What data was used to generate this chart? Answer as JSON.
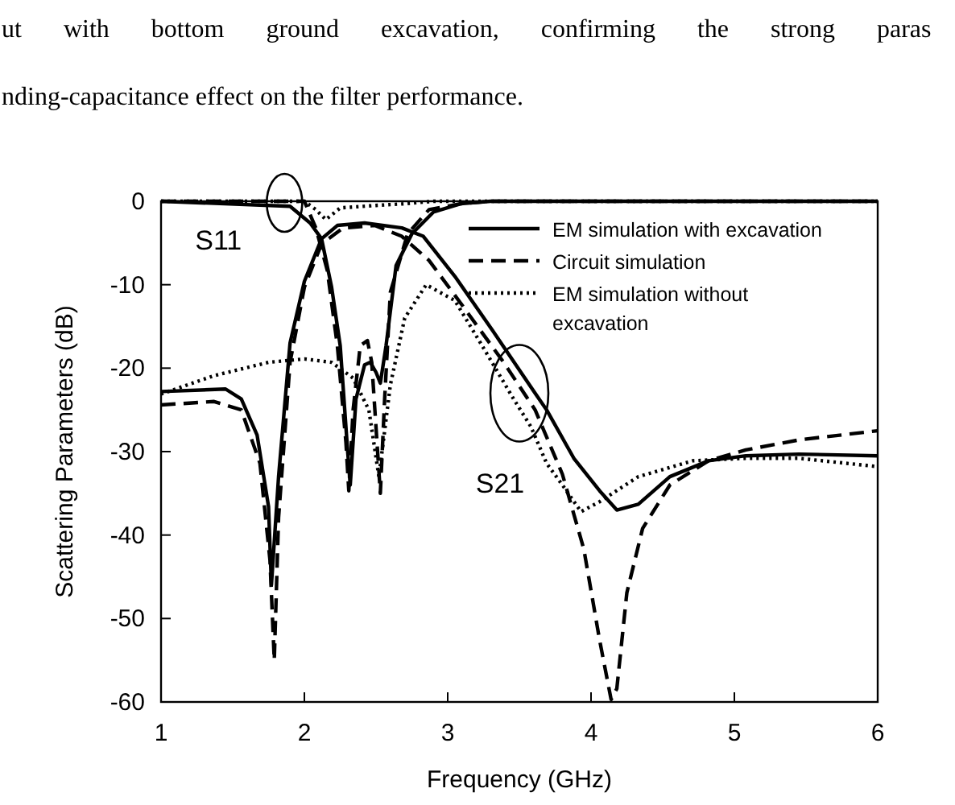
{
  "chart_data": {
    "type": "line",
    "xlabel": "Frequency (GHz)",
    "ylabel": "Scattering Parameters (dB)",
    "xlim": [
      1,
      6
    ],
    "xticks": [
      1,
      2,
      3,
      4,
      5,
      6
    ],
    "ylim": [
      -60,
      0
    ],
    "yticks": [
      0,
      -10,
      -20,
      -30,
      -40,
      -50,
      -60
    ],
    "legend": "top right",
    "annotations": [
      "ut with bottom ground excavation, confirming the strong paras",
      "nding-capacitance effect on the filter performance.",
      {
        "text": "S11",
        "x": 1.85,
        "y": 0
      },
      {
        "text": "S21",
        "x": 3.5,
        "y": -23
      }
    ],
    "series": [
      {
        "name": "EM simulation with excavation",
        "color": "#000000",
        "line_style": "solid",
        "x": [
          1,
          1.45,
          1.56,
          1.67,
          1.75,
          1.77,
          1.82,
          1.9,
          2.0,
          2.12,
          2.23,
          2.42,
          2.68,
          2.83,
          3.05,
          3.31,
          3.61,
          3.69,
          3.88,
          4.06,
          4.18,
          4.33,
          4.55,
          4.82,
          5.08,
          5.45,
          6
        ],
        "values": [
          -22.8,
          -22.5,
          -23.7,
          -28,
          -36.6,
          -46,
          -33,
          -17,
          -9.6,
          -4.5,
          -2.9,
          -2.6,
          -3.2,
          -4.2,
          -9,
          -15.4,
          -23,
          -25,
          -30.8,
          -34.7,
          -37,
          -36.3,
          -33,
          -31.1,
          -30.5,
          -30.3,
          -30.5
        ]
      },
      {
        "color": "#000000",
        "line_style": "solid",
        "x": [
          1,
          1.9,
          2.04,
          2.12,
          2.19,
          2.25,
          2.3,
          2.32,
          2.36,
          2.42,
          2.46,
          2.5,
          2.53,
          2.57,
          2.64,
          2.75,
          2.9,
          3.09,
          3.3,
          6
        ],
        "values": [
          0,
          -0.6,
          -2.6,
          -4.5,
          -10.3,
          -17.3,
          -29.5,
          -34,
          -23.7,
          -19.6,
          -19.3,
          -20.5,
          -21.8,
          -17.3,
          -7.7,
          -3.9,
          -1.3,
          -0.3,
          0,
          0
        ]
      },
      {
        "name": "Circuit simulation",
        "color": "#000000",
        "line_style": "dashed",
        "x": [
          1,
          1.37,
          1.56,
          1.69,
          1.76,
          1.79,
          1.82,
          1.9,
          2.0,
          2.12,
          2.27,
          2.49,
          2.68,
          2.87,
          3.09,
          3.39,
          3.61,
          3.8,
          3.95,
          4.06,
          4.14,
          4.18,
          4.25,
          4.36,
          4.55,
          4.82,
          5.08,
          5.45,
          6
        ],
        "values": [
          -24.4,
          -24,
          -25,
          -31.4,
          -43,
          -55,
          -37.9,
          -19.3,
          -10.3,
          -5.1,
          -3.2,
          -2.9,
          -4.2,
          -7.1,
          -12.2,
          -19.3,
          -25,
          -32.7,
          -41.7,
          -52.6,
          -59.7,
          -58.4,
          -46.9,
          -39.2,
          -34,
          -31.1,
          -29.8,
          -28.6,
          -27.5
        ]
      },
      {
        "color": "#000000",
        "line_style": "dashed",
        "x": [
          1,
          2.0,
          2.08,
          2.16,
          2.23,
          2.29,
          2.31,
          2.34,
          2.39,
          2.44,
          2.47,
          2.53,
          2.56,
          2.6,
          2.72,
          2.87,
          3.09,
          3.3,
          6
        ],
        "values": [
          0,
          0,
          -3.2,
          -8.3,
          -17.3,
          -28.9,
          -34.7,
          -25,
          -17.3,
          -16.7,
          -19.3,
          -35,
          -23.7,
          -10.9,
          -3.9,
          -1,
          -0.3,
          0,
          0
        ]
      },
      {
        "name": "EM simulation without excavation",
        "color": "#000000",
        "line_style": "dotted",
        "x": [
          1,
          1.37,
          1.75,
          2.0,
          2.19,
          2.34,
          2.45,
          2.52,
          2.6,
          2.7,
          2.85,
          3.05,
          3.24,
          3.46,
          3.58,
          3.69,
          3.8,
          3.93,
          4.06,
          4.33,
          4.71,
          5.08,
          5.45,
          6
        ],
        "values": [
          -23.1,
          -20.9,
          -19.3,
          -18.9,
          -19.3,
          -21.2,
          -25,
          -33,
          -22,
          -14,
          -10,
          -11.9,
          -17.3,
          -23.7,
          -27,
          -31.4,
          -34,
          -37.2,
          -36,
          -33,
          -31.1,
          -30.8,
          -30.8,
          -31.8
        ]
      },
      {
        "color": "#000000",
        "line_style": "dotted",
        "x": [
          1,
          2.0,
          2.08,
          2.15,
          2.25,
          2.5,
          2.7,
          2.9,
          6
        ],
        "values": [
          0,
          0,
          -1,
          -2.2,
          -0.8,
          -0.5,
          -0.3,
          0,
          0
        ]
      }
    ]
  }
}
